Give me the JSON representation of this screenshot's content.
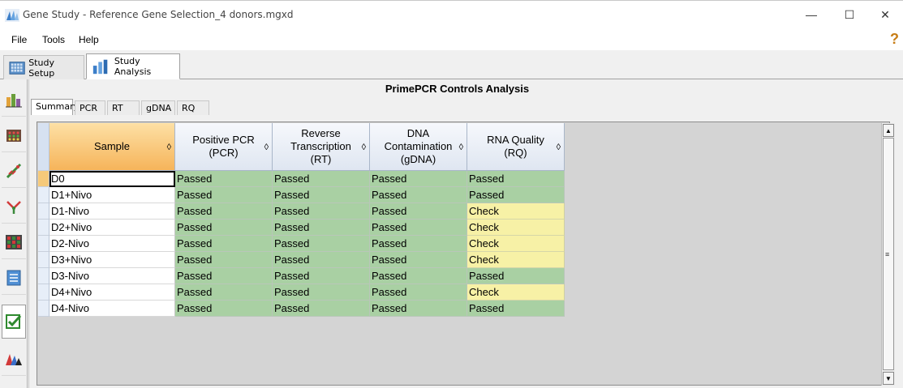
{
  "window": {
    "title": "Gene Study - Reference Gene Selection_4 donors.mgxd",
    "minimize": "—",
    "maximize": "☐",
    "close": "✕"
  },
  "menu": {
    "file": "File",
    "tools": "Tools",
    "help": "Help"
  },
  "top_tabs": {
    "setup": "Study Setup",
    "analysis": "Study Analysis"
  },
  "panel": {
    "title": "PrimePCR Controls Analysis"
  },
  "sub_tabs": [
    "Summary",
    "PCR",
    "RT",
    "gDNA",
    "RQ"
  ],
  "columns": [
    {
      "line1": "Sample",
      "line2": "",
      "line3": ""
    },
    {
      "line1": "Positive PCR",
      "line2": "(PCR)",
      "line3": ""
    },
    {
      "line1": "Reverse",
      "line2": "Transcription",
      "line3": "(RT)"
    },
    {
      "line1": "DNA",
      "line2": "Contamination",
      "line3": "(gDNA)"
    },
    {
      "line1": "RNA Quality",
      "line2": "(RQ)",
      "line3": ""
    }
  ],
  "sort_glyph": "◊",
  "rows": [
    {
      "sample": "D0",
      "pcr": "Passed",
      "rt": "Passed",
      "gdna": "Passed",
      "rq": "Passed"
    },
    {
      "sample": "D1+Nivo",
      "pcr": "Passed",
      "rt": "Passed",
      "gdna": "Passed",
      "rq": "Passed"
    },
    {
      "sample": "D1-Nivo",
      "pcr": "Passed",
      "rt": "Passed",
      "gdna": "Passed",
      "rq": "Check"
    },
    {
      "sample": "D2+Nivo",
      "pcr": "Passed",
      "rt": "Passed",
      "gdna": "Passed",
      "rq": "Check"
    },
    {
      "sample": "D2-Nivo",
      "pcr": "Passed",
      "rt": "Passed",
      "gdna": "Passed",
      "rq": "Check"
    },
    {
      "sample": "D3+Nivo",
      "pcr": "Passed",
      "rt": "Passed",
      "gdna": "Passed",
      "rq": "Check"
    },
    {
      "sample": "D3-Nivo",
      "pcr": "Passed",
      "rt": "Passed",
      "gdna": "Passed",
      "rq": "Passed"
    },
    {
      "sample": "D4+Nivo",
      "pcr": "Passed",
      "rt": "Passed",
      "gdna": "Passed",
      "rq": "Check"
    },
    {
      "sample": "D4-Nivo",
      "pcr": "Passed",
      "rt": "Passed",
      "gdna": "Passed",
      "rq": "Passed"
    }
  ],
  "colors": {
    "passed": "#a9d0a3",
    "check": "#f7f1a6",
    "sample_header": "#f6b45a"
  },
  "left_toolbar_icons": [
    "bar-chart-icon",
    "plate-icon",
    "dna-icon",
    "venn-icon",
    "heatmap-icon",
    "report-icon",
    "checkbox-icon",
    "peaks-icon"
  ]
}
